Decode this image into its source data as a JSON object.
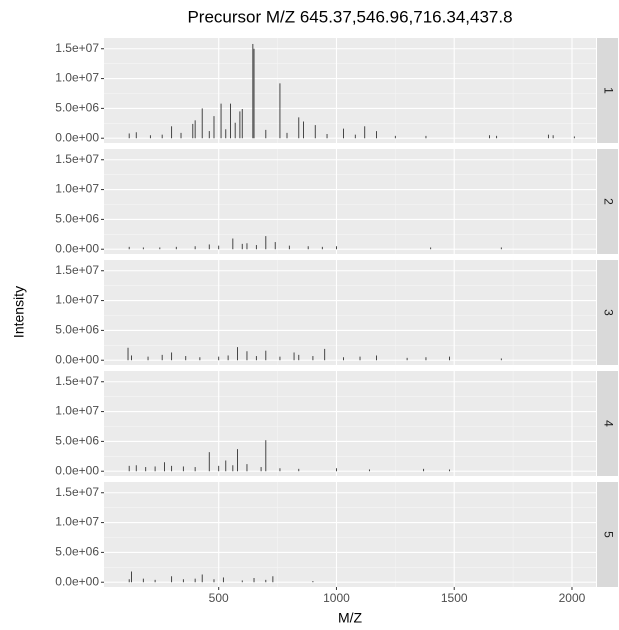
{
  "chart_data": {
    "type": "spectrum",
    "title": "Precursor M/Z 645.37,546.96,716.34,437.8",
    "x_label": "M/Z",
    "y_label": "Intensity",
    "xlim": [
      13,
      2102
    ],
    "xticks": [
      500,
      1000,
      1500,
      2000
    ],
    "ylim": [
      -800000,
      16800000
    ],
    "yticks": [
      {
        "value": 0,
        "label": "0.0e+00"
      },
      {
        "value": 5000000,
        "label": "5.0e+06"
      },
      {
        "value": 10000000,
        "label": "1.0e+07"
      },
      {
        "value": 15000000,
        "label": "1.5e+07"
      }
    ],
    "color": "#333333",
    "grid": true,
    "facets": [
      {
        "label": "1",
        "x": [
          120,
          150,
          210,
          260,
          300,
          340,
          390,
          400,
          430,
          460,
          480,
          510,
          530,
          550,
          570,
          590,
          600,
          645,
          650,
          700,
          760,
          790,
          840,
          860,
          910,
          960,
          1030,
          1080,
          1120,
          1170,
          1250,
          1380,
          1650,
          1680,
          1900,
          1920,
          2010
        ],
        "values": [
          800000,
          1000000,
          500000,
          600000,
          2000000,
          900000,
          2400000,
          3000000,
          5000000,
          1200000,
          3700000,
          5800000,
          1500000,
          5800000,
          2600000,
          4500000,
          4900000,
          15800000,
          15000000,
          1400000,
          9200000,
          900000,
          3500000,
          2800000,
          2200000,
          700000,
          1600000,
          600000,
          2000000,
          1200000,
          400000,
          400000,
          500000,
          400000,
          600000,
          500000,
          300000
        ]
      },
      {
        "label": "2",
        "x": [
          120,
          180,
          250,
          320,
          400,
          460,
          500,
          560,
          600,
          620,
          660,
          700,
          740,
          800,
          880,
          940,
          1000,
          1400,
          1700
        ],
        "values": [
          400000,
          300000,
          300000,
          400000,
          500000,
          800000,
          600000,
          1800000,
          900000,
          1000000,
          700000,
          2200000,
          1200000,
          600000,
          500000,
          400000,
          500000,
          300000,
          300000
        ]
      },
      {
        "label": "3",
        "x": [
          115,
          130,
          200,
          260,
          300,
          360,
          420,
          500,
          540,
          580,
          620,
          660,
          700,
          760,
          820,
          840,
          900,
          950,
          1030,
          1100,
          1170,
          1300,
          1380,
          1480,
          1700
        ],
        "values": [
          2100000,
          800000,
          600000,
          900000,
          1300000,
          700000,
          500000,
          600000,
          800000,
          2200000,
          1500000,
          700000,
          1600000,
          600000,
          1300000,
          900000,
          700000,
          1900000,
          500000,
          600000,
          800000,
          400000,
          500000,
          600000,
          300000
        ]
      },
      {
        "label": "4",
        "x": [
          120,
          150,
          190,
          230,
          270,
          300,
          350,
          400,
          460,
          500,
          530,
          560,
          580,
          620,
          680,
          700,
          760,
          840,
          1000,
          1140,
          1370,
          1480
        ],
        "values": [
          900000,
          1000000,
          700000,
          800000,
          1500000,
          900000,
          800000,
          700000,
          3200000,
          900000,
          1800000,
          1000000,
          3700000,
          1200000,
          700000,
          5200000,
          500000,
          400000,
          500000,
          300000,
          400000,
          300000
        ]
      },
      {
        "label": "5",
        "x": [
          120,
          130,
          180,
          230,
          300,
          350,
          400,
          430,
          480,
          520,
          600,
          650,
          700,
          730,
          900
        ],
        "values": [
          500000,
          1800000,
          600000,
          400000,
          1000000,
          500000,
          600000,
          1300000,
          500000,
          800000,
          300000,
          700000,
          400000,
          1000000,
          200000
        ]
      }
    ]
  }
}
